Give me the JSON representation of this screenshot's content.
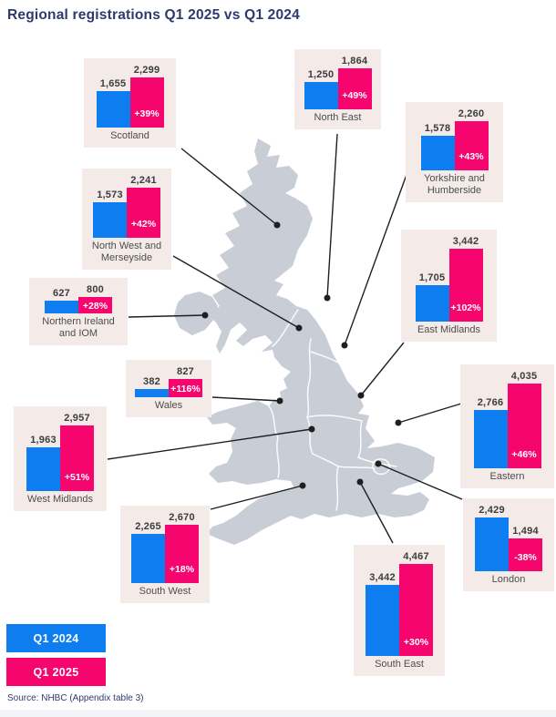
{
  "title": "Regional registrations Q1 2025 vs Q1 2024",
  "source": "Source: NHBC (Appendix table 3)",
  "colors": {
    "q1_2024": "#0e7df0",
    "q1_2025": "#f7056e",
    "card_bg": "#f4ebe8",
    "map_fill": "#c9cdd6",
    "title_navy": "#2e3a6e",
    "connector": "#1f1f1f"
  },
  "legend": {
    "items": [
      {
        "label": "Q1 2024",
        "color": "#0e7df0"
      },
      {
        "label": "Q1 2025",
        "color": "#f7056e"
      }
    ]
  },
  "chart_data": {
    "type": "bar",
    "title": "Regional registrations Q1 2025 vs Q1 2024",
    "series_names": [
      "Q1 2024",
      "Q1 2025"
    ],
    "layout": "small multiples positioned around UK map, one two-bar chart per region",
    "regions": [
      {
        "name": "Scotland",
        "q1_2024": 1655,
        "q1_2025": 2299,
        "label_2024": "1,655",
        "label_2025": "2,299",
        "change": "+39%"
      },
      {
        "name": "North East",
        "q1_2024": 1250,
        "q1_2025": 1864,
        "label_2024": "1,250",
        "label_2025": "1,864",
        "change": "+49%"
      },
      {
        "name": "Yorkshire and Humberside",
        "q1_2024": 1578,
        "q1_2025": 2260,
        "label_2024": "1,578",
        "label_2025": "2,260",
        "change": "+43%"
      },
      {
        "name": "North West and Merseyside",
        "q1_2024": 1573,
        "q1_2025": 2241,
        "label_2024": "1,573",
        "label_2025": "2,241",
        "change": "+42%"
      },
      {
        "name": "Northern Ireland and IOM",
        "q1_2024": 627,
        "q1_2025": 800,
        "label_2024": "627",
        "label_2025": "800",
        "change": "+28%"
      },
      {
        "name": "East Midlands",
        "q1_2024": 1705,
        "q1_2025": 3442,
        "label_2024": "1,705",
        "label_2025": "3,442",
        "change": "+102%"
      },
      {
        "name": "Wales",
        "q1_2024": 382,
        "q1_2025": 827,
        "label_2024": "382",
        "label_2025": "827",
        "change": "+116%"
      },
      {
        "name": "West Midlands",
        "q1_2024": 1963,
        "q1_2025": 2957,
        "label_2024": "1,963",
        "label_2025": "2,957",
        "change": "+51%"
      },
      {
        "name": "Eastern",
        "q1_2024": 2766,
        "q1_2025": 4035,
        "label_2024": "2,766",
        "label_2025": "4,035",
        "change": "+46%"
      },
      {
        "name": "London",
        "q1_2024": 2429,
        "q1_2025": 1494,
        "label_2024": "2,429",
        "label_2025": "1,494",
        "change": "-38%"
      },
      {
        "name": "South West",
        "q1_2024": 2265,
        "q1_2025": 2670,
        "label_2024": "2,265",
        "label_2025": "2,670",
        "change": "+18%"
      },
      {
        "name": "South East",
        "q1_2024": 3442,
        "q1_2025": 4467,
        "label_2024": "3,442",
        "label_2025": "4,467",
        "change": "+30%"
      }
    ]
  }
}
